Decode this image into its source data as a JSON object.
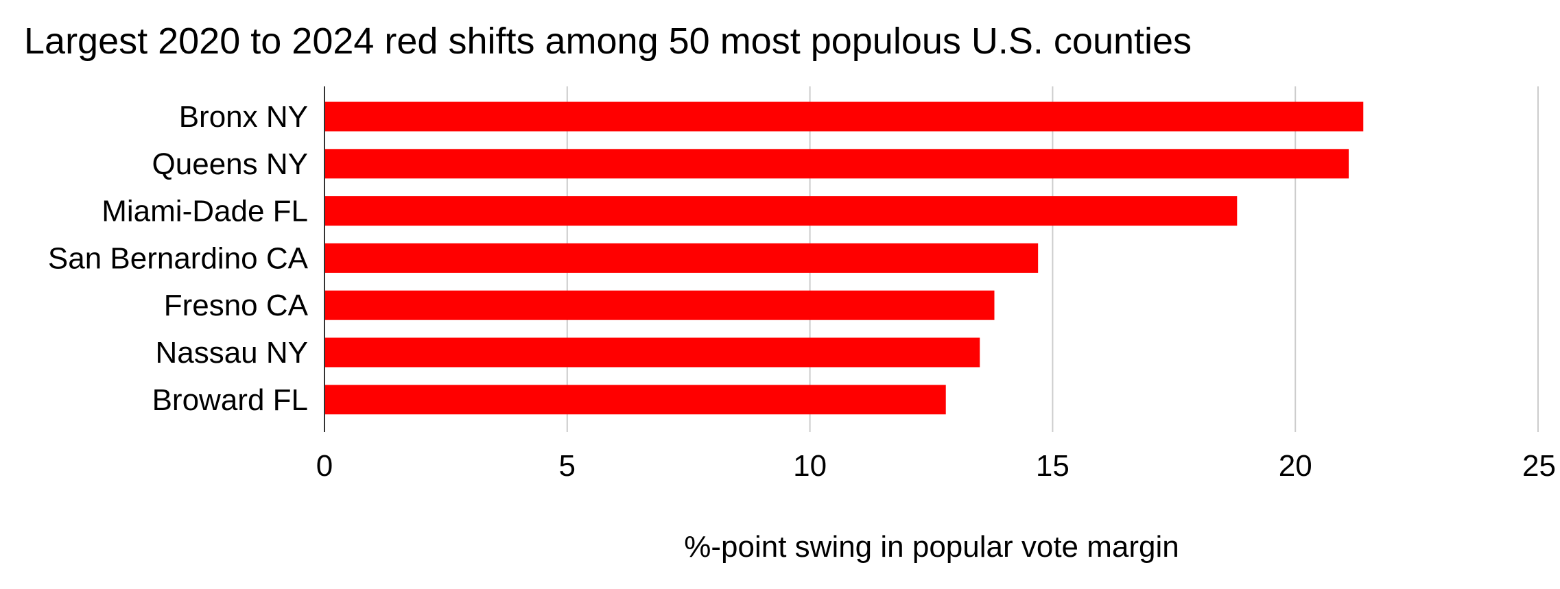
{
  "chart_data": {
    "type": "bar",
    "orientation": "horizontal",
    "title": "Largest 2020 to 2024 red shifts among 50 most populous U.S. counties",
    "xlabel": "%-point swing in popular vote margin",
    "ylabel": "",
    "categories": [
      "Bronx NY",
      "Queens NY",
      "Miami-Dade FL",
      "San Bernardino CA",
      "Fresno CA",
      "Nassau NY",
      "Broward FL"
    ],
    "values": [
      21.4,
      21.1,
      18.8,
      14.7,
      13.8,
      13.5,
      12.8
    ],
    "xlim": [
      0,
      25
    ],
    "xticks": [
      0,
      5,
      10,
      15,
      20,
      25
    ],
    "grid": true,
    "legend": "none",
    "bar_color": "#ff0000"
  }
}
